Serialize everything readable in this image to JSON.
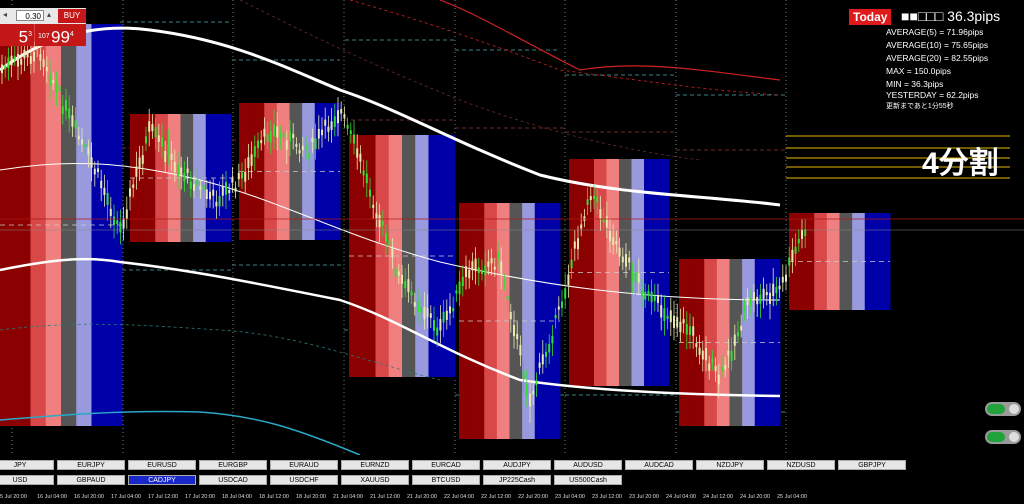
{
  "trade_panel": {
    "lot_value": "0.30",
    "buy_label": "BUY",
    "sell_price_tail": "5",
    "sell_price_sup": "3",
    "buy_price_small": "107",
    "buy_price_big": "99",
    "buy_price_sup": "4"
  },
  "stats": {
    "today_label": "Today",
    "today_value": "■■□□□ 36.3pips",
    "lines": [
      "AVERAGE(5) = 71.96pips",
      "AVERAGE(10) = 75.65pips",
      "AVERAGE(20) = 82.55pips",
      "MAX = 150.0pips",
      "MIN = 36.3pips",
      "YESTERDAY = 62.2pips",
      "更新まであと1分55秒"
    ]
  },
  "annotation": "4分割",
  "symbols_row1": [
    "JPY",
    "EURJPY",
    "EURUSD",
    "EURGBP",
    "EURAUD",
    "EURNZD",
    "EURCAD",
    "AUDJPY",
    "AUDUSD",
    "AUDCAD",
    "NZDJPY",
    "NZDUSD",
    "GBPJPY"
  ],
  "symbols_row2": [
    "USD",
    "GBPAUD",
    "CADJPY",
    "USDCAD",
    "USDCHF",
    "XAUUSD",
    "BTCUSD",
    "JP225Cash",
    "US500Cash"
  ],
  "active_symbol": "CADJPY",
  "time_labels": [
    "5 Jul 20:00",
    "16 Jul 04:00",
    "16 Jul 20:00",
    "17 Jul 04:00",
    "17 Jul 12:00",
    "17 Jul 20:00",
    "18 Jul 04:00",
    "18 Jul 12:00",
    "18 Jul 20:00",
    "21 Jul 04:00",
    "21 Jul 12:00",
    "21 Jul 20:00",
    "22 Jul 04:00",
    "22 Jul 12:00",
    "22 Jul 20:00",
    "23 Jul 04:00",
    "23 Jul 12:00",
    "23 Jul 20:00",
    "24 Jul 04:00",
    "24 Jul 12:00",
    "24 Jul 20:00",
    "25 Jul 04:00"
  ],
  "colors": {
    "strip_dark_red": "#8b0000",
    "strip_red": "#d84848",
    "strip_pink": "#f08080",
    "strip_gray": "#555555",
    "strip_lavender": "#9999dd",
    "strip_blue": "#0000a8",
    "candle_up": "#33dd33",
    "candle_down": "#e8e8b0",
    "band_white": "#ffffff",
    "band_red": "#cc2222",
    "accent_today": "#e01a1a"
  }
}
